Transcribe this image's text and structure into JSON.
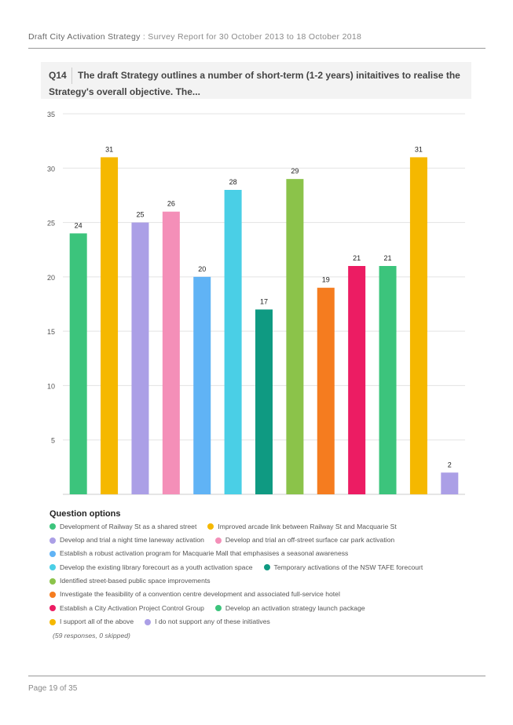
{
  "header": {
    "doc_title": "Draft City Activation Strategy",
    "report_label": " : Survey Report for 30 October 2013 to 18 October 2018"
  },
  "question": {
    "number": "Q14",
    "text": "The draft Strategy outlines a number of short-term (1-2 years) initaitives to realise the Strategy's overall objective. The..."
  },
  "chart_data": {
    "type": "bar",
    "ylim": [
      0,
      35
    ],
    "yticks": [
      5,
      10,
      15,
      20,
      25,
      30,
      35
    ],
    "grid": true,
    "categories": [
      "Development of Railway St as a shared street",
      "Improved arcade link between Railway St and Macquarie St",
      "Develop and trial a night time laneway activation",
      "Develop and trial an off-street surface car park activation",
      "Establish a robust activation program for Macquarie Mall that emphasises a seasonal awareness",
      "Develop the existing library forecourt as a youth activation space",
      "Temporary activations of the NSW TAFE forecourt",
      "Identified street-based public space improvements",
      "Investigate the feasibility of a convention centre development and associated full-service hotel",
      "Establish a City Activation Project Control Group",
      "Develop an activation strategy launch package",
      "I support all of the above",
      "I do not support any of these initiatives"
    ],
    "values": [
      24,
      31,
      25,
      26,
      20,
      28,
      17,
      29,
      19,
      21,
      21,
      31,
      2
    ],
    "colors": [
      "#3cc47c",
      "#f5b800",
      "#ab9fe6",
      "#f48fb8",
      "#60b3f5",
      "#4acfe6",
      "#0f9a82",
      "#8bc34a",
      "#f57c1f",
      "#ec1c63",
      "#3cc47c",
      "#f5b800",
      "#ab9fe6"
    ]
  },
  "legend": {
    "title": "Question options",
    "rows": [
      [
        0,
        1
      ],
      [
        2,
        3
      ],
      [
        4
      ],
      [
        5,
        6
      ],
      [
        7
      ],
      [
        8
      ],
      [
        9,
        10
      ],
      [
        11,
        12
      ]
    ],
    "responses": "(59 responses, 0 skipped)"
  },
  "footer": {
    "page": "Page 19 of 35"
  }
}
